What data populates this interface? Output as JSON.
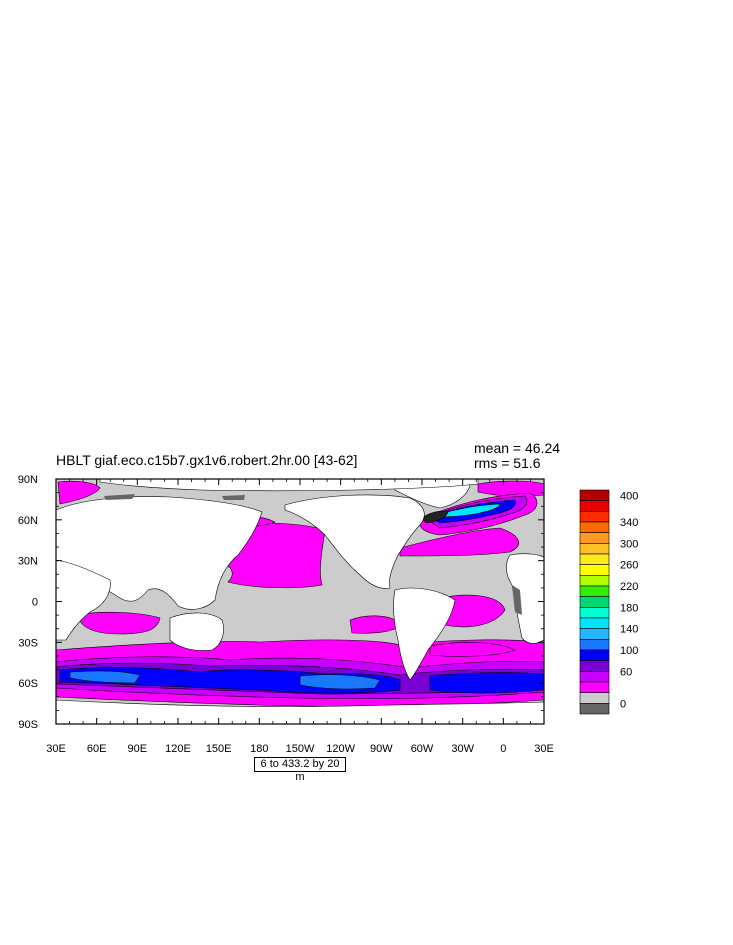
{
  "chart_data": {
    "type": "heatmap",
    "title": "HBLT giaf.eco.c15b7.gx1v6.robert.2hr.00 [43-62]",
    "stats": {
      "mean": "mean = 46.24",
      "rms": "rms = 51.6"
    },
    "subtitle": "6 to 433.2 by 20 m",
    "x_ticks": [
      "30E",
      "60E",
      "90E",
      "120E",
      "150E",
      "180",
      "150W",
      "120W",
      "90W",
      "60W",
      "30W",
      "0",
      "30E"
    ],
    "y_ticks": [
      "90N",
      "60N",
      "30N",
      "0",
      "30S",
      "60S",
      "90S"
    ],
    "xlim": [
      30,
      390
    ],
    "ylim": [
      -90,
      90
    ],
    "colorbar": {
      "labels": [
        "400",
        "340",
        "300",
        "260",
        "220",
        "180",
        "140",
        "100",
        "60",
        "0"
      ],
      "colors": [
        "#b40000",
        "#e60000",
        "#ff2a00",
        "#ff6a00",
        "#ff9a26",
        "#ffbf26",
        "#ffe91a",
        "#ffff00",
        "#b3ff00",
        "#33ee00",
        "#00d873",
        "#00ffd2",
        "#00e6ff",
        "#26b4ff",
        "#1a78ff",
        "#0000ff",
        "#7a00d4",
        "#c800ff",
        "#ff00ff",
        "#cccccc",
        "#666666"
      ]
    }
  }
}
